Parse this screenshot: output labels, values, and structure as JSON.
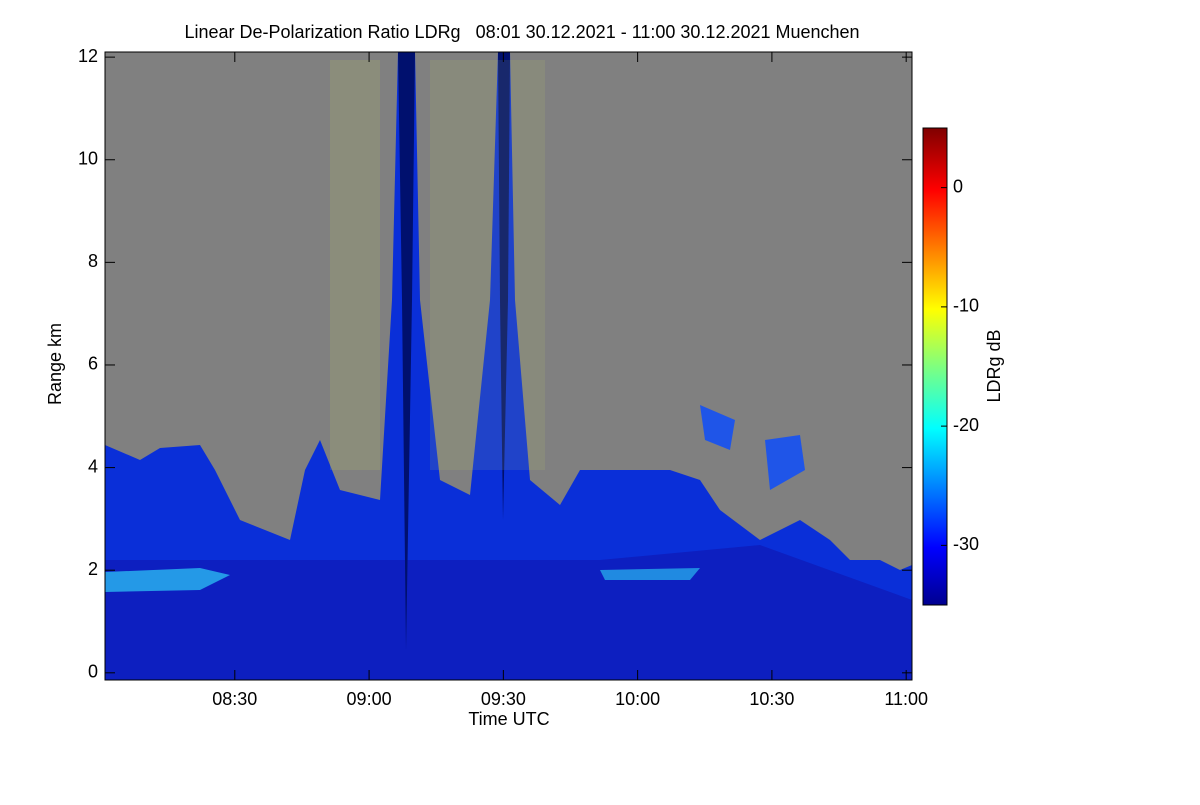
{
  "chart_data": {
    "type": "heatmap",
    "title": "Linear De-Polarization Ratio LDRg   08:01 30.12.2021 - 11:00 30.12.2021 Muenchen",
    "x_label": "Time UTC",
    "y_label": "Range km",
    "colorbar_label": "LDRg dB",
    "xlim": [
      481,
      661.3
    ],
    "xticks": [
      {
        "value": 510,
        "label": "08:30"
      },
      {
        "value": 540,
        "label": "09:00"
      },
      {
        "value": 570,
        "label": "09:30"
      },
      {
        "value": 600,
        "label": "10:00"
      },
      {
        "value": 630,
        "label": "10:30"
      },
      {
        "value": 660,
        "label": "11:00"
      }
    ],
    "ylim": [
      -0.14,
      12.1
    ],
    "yticks": [
      0,
      2,
      4,
      6,
      8,
      10,
      12
    ],
    "clim": [
      -35,
      5
    ],
    "cticks": [
      0,
      -10,
      -20,
      -30
    ]
  }
}
